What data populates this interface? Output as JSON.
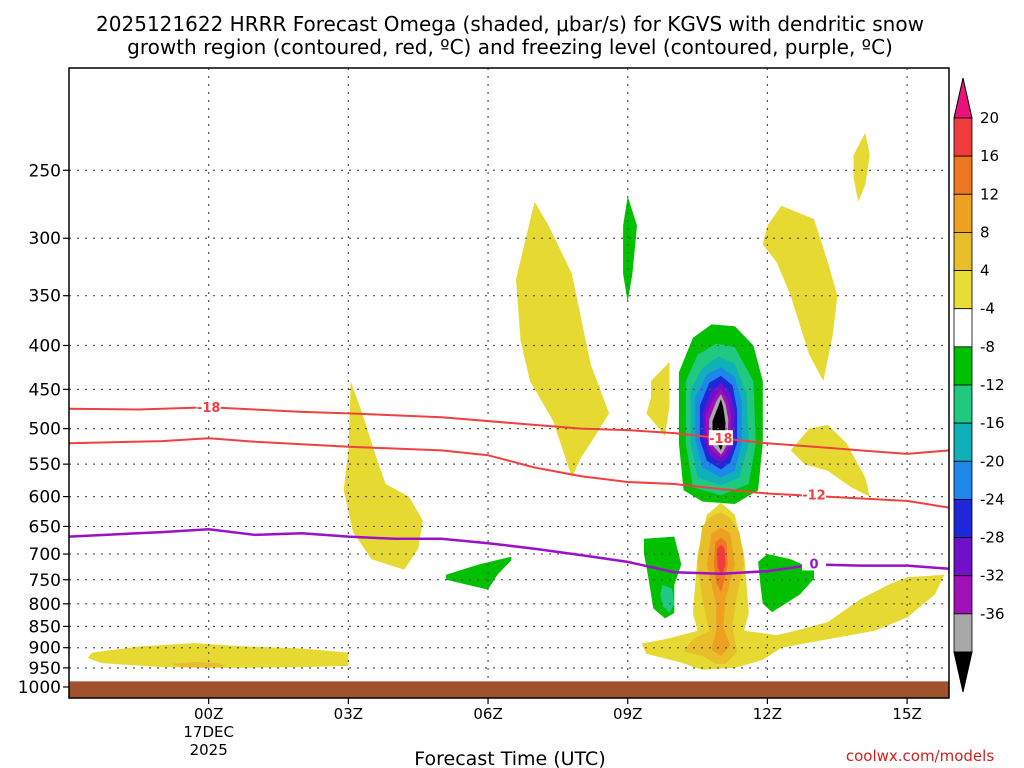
{
  "chart_data": {
    "type": "contour",
    "title_line1": "2025121622 HRRR Forecast Omega (shaded, μbar/s) for KGVS with dendritic snow",
    "title_line2": "growth region (contoured, red, ºC) and freezing level (contoured, purple, ºC)",
    "xlabel": "Forecast Time (UTC)",
    "ylabel": "",
    "x_range_hours": [
      -3.0,
      15.9
    ],
    "y_range_hpa": [
      1030,
      190
    ],
    "x_ticks": [
      {
        "h": 0,
        "label": "00Z"
      },
      {
        "h": 3,
        "label": "03Z"
      },
      {
        "h": 6,
        "label": "06Z"
      },
      {
        "h": 9,
        "label": "09Z"
      },
      {
        "h": 12,
        "label": "12Z"
      },
      {
        "h": 15,
        "label": "15Z"
      }
    ],
    "date_label_1": "17DEC",
    "date_label_2": "2025",
    "y_ticks": [
      250,
      300,
      350,
      400,
      450,
      500,
      550,
      600,
      650,
      700,
      750,
      800,
      850,
      900,
      950,
      1000
    ],
    "colorbar": {
      "labels": [
        "20",
        "16",
        "12",
        "8",
        "4",
        "-4",
        "-8",
        "-12",
        "-16",
        "-20",
        "-24",
        "-28",
        "-32",
        "-36"
      ],
      "colors": [
        "#e8127a",
        "#f03c3c",
        "#ee7722",
        "#eea020",
        "#e8be2a",
        "#e8dc36",
        "#ffffff",
        "#00c000",
        "#20c880",
        "#10b0b8",
        "#1e88e8",
        "#1e28d8",
        "#7010c8",
        "#a010b8",
        "#a8a8a8",
        "#000000"
      ]
    },
    "omega_colors": {
      "w4": "#e6da32",
      "w8": "#e8be2a",
      "w12": "#eea020",
      "w16": "#ee7722",
      "w20": "#f03c3c",
      "g4": "#00c000",
      "g8": "#20c880",
      "g12": "#10b0b8",
      "g16": "#1e88e8",
      "g20": "#1e28d8",
      "g24": "#7010c8",
      "g28": "#a010b8",
      "g32": "#a8a8a8",
      "g36": "#000000"
    },
    "contour_labels": {
      "iso_m18": "-18",
      "iso_m12": "-12",
      "freezing": "0"
    },
    "contour_colors": {
      "red": "#f04040",
      "purple": "#9a12c8",
      "terrain": "#a0522d"
    },
    "credit": "coolwx.com/models"
  }
}
